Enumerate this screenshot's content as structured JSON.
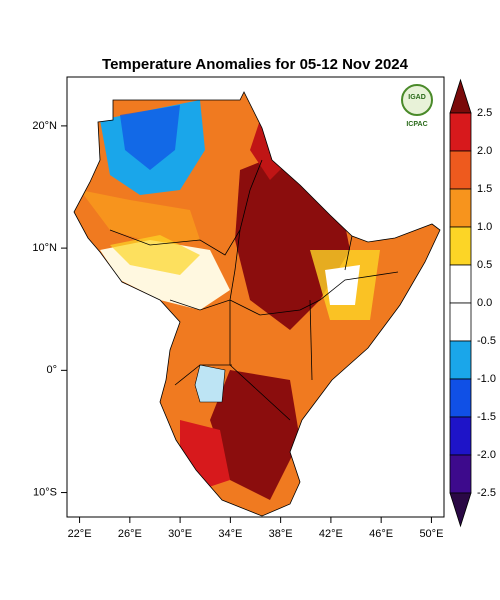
{
  "title": "Temperature Anomalies for 05-12 Nov 2024",
  "map": {
    "xlim": [
      21,
      51
    ],
    "ylim": [
      -12,
      24
    ],
    "xticks": [
      {
        "value": 22,
        "label": "22°E"
      },
      {
        "value": 26,
        "label": "26°E"
      },
      {
        "value": 30,
        "label": "30°E"
      },
      {
        "value": 34,
        "label": "34°E"
      },
      {
        "value": 38,
        "label": "38°E"
      },
      {
        "value": 42,
        "label": "42°E"
      },
      {
        "value": 46,
        "label": "46°E"
      },
      {
        "value": 50,
        "label": "50°E"
      }
    ],
    "yticks": [
      {
        "value": 20,
        "label": "20°N"
      },
      {
        "value": 10,
        "label": "10°N"
      },
      {
        "value": 0,
        "label": "0°"
      },
      {
        "value": -10,
        "label": "10°S"
      }
    ]
  },
  "colorbar": {
    "levels": [
      2.5,
      {
        "value": 2,
        "label": "2.0"
      },
      1.5,
      {
        "value": 1,
        "label": "1.0"
      },
      0.5,
      {
        "value": 0,
        "label": "0.0"
      },
      -0.5,
      {
        "value": -1,
        "label": "-1.0"
      },
      -1.5,
      {
        "value": -2,
        "label": "-2.0"
      },
      -2.5
    ],
    "colors": [
      "#7a0a0a",
      "#d7191c",
      "#ee5a1e",
      "#f7941d",
      "#fcd526",
      "#ffffff",
      "#ffffff",
      "#1aa6ea",
      "#1050e6",
      "#1e14c8",
      "#3d0a8c",
      "#2a0845"
    ]
  },
  "logo": {
    "top": "IGAD",
    "bottom": "ICPAC"
  }
}
